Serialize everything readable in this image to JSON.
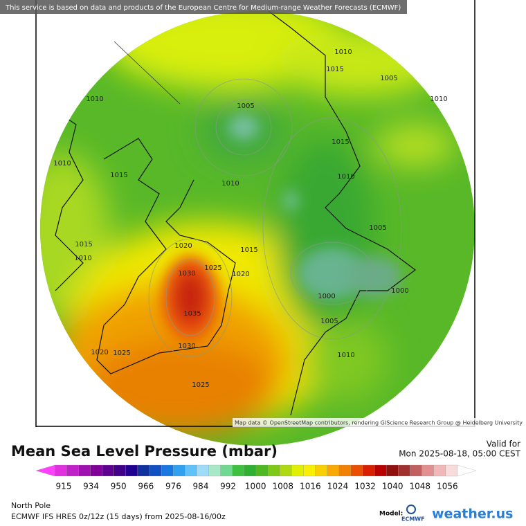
{
  "banner": "This service is based on data and products of the European Centre for Medium-range Weather Forecasts (ECMWF)",
  "map": {
    "attribution": "Map data © OpenStreetMap contributors, rendering GIScience Research Group @ Heidelberg University",
    "contour_labels": [
      "1010",
      "1005",
      "1010",
      "1015",
      "1005",
      "1010",
      "1015",
      "1010",
      "1015",
      "1010",
      "1010",
      "1015",
      "1010",
      "1020",
      "1015",
      "1025",
      "1030",
      "1020",
      "1005",
      "1000",
      "1000",
      "1035",
      "1005",
      "1020",
      "1025",
      "1030",
      "1010",
      "1025"
    ]
  },
  "header": {
    "title": "Mean Sea Level Pressure (mbar)",
    "valid_label": "Valid for",
    "valid_time": "Mon 2025-08-18, 05:00 CEST"
  },
  "colorbar": {
    "colors": [
      "#ff40ff",
      "#e030e0",
      "#c020c8",
      "#a010b0",
      "#800098",
      "#600090",
      "#400088",
      "#200090",
      "#1030a0",
      "#1050c0",
      "#1878e0",
      "#30a0f0",
      "#60c0f8",
      "#a0dcf8",
      "#a8e8c8",
      "#70d890",
      "#40c040",
      "#30b030",
      "#50b820",
      "#80c818",
      "#b0d810",
      "#e0f000",
      "#f8f000",
      "#f8d000",
      "#f8a800",
      "#f08000",
      "#e85000",
      "#d82000",
      "#b80000",
      "#901010",
      "#a03030",
      "#c06060",
      "#e09090",
      "#f0b8b8",
      "#f8dcdc",
      "#ffffff"
    ],
    "labels": [
      "915",
      "934",
      "950",
      "966",
      "976",
      "984",
      "992",
      "1000",
      "1008",
      "1016",
      "1024",
      "1032",
      "1040",
      "1048",
      "1056"
    ]
  },
  "footer": {
    "region": "North Pole",
    "model_run": "ECMWF IFS HRES 0z/12z (15 days) from  2025-08-16/00z",
    "model_label": "Model:",
    "ecmwf": "ECMWF",
    "brand": "weather.us"
  }
}
